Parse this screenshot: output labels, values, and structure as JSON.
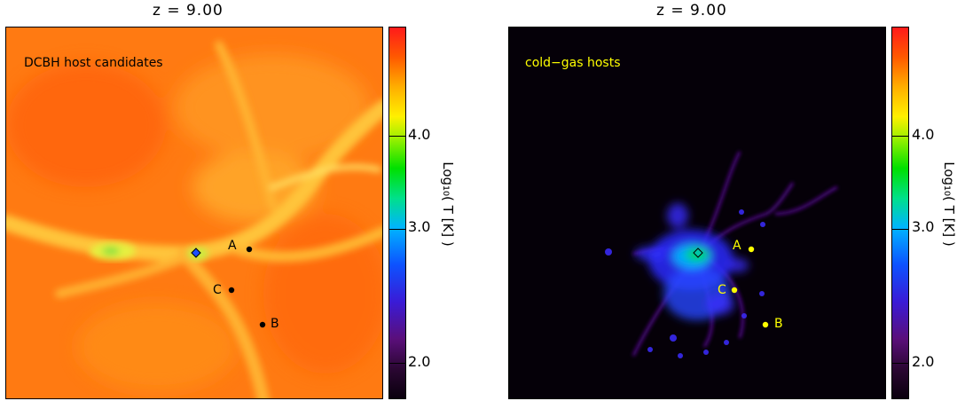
{
  "panels": [
    {
      "title": "z = 9.00",
      "label": "DCBH host candidates",
      "points": [
        "A",
        "B",
        "C"
      ]
    },
    {
      "title": "z = 9.00",
      "label": "cold−gas hosts",
      "points": [
        "A",
        "B",
        "C"
      ]
    }
  ],
  "colorbar": {
    "title": "Log₁₀( T [K] )",
    "ticks": [
      "2.0",
      "3.0",
      "4.0"
    ]
  },
  "colors": {
    "label_left": "#000000",
    "label_right": "#ffff00",
    "points_left": "#000000",
    "points_right": "#ffff00"
  }
}
